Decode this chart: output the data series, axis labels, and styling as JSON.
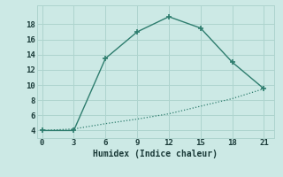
{
  "line1_x": [
    0,
    3,
    6,
    9,
    12,
    15,
    18,
    21
  ],
  "line1_y": [
    4,
    4,
    13.5,
    17,
    19,
    17.5,
    13,
    9.5
  ],
  "line2_x": [
    0,
    3,
    6,
    9,
    12,
    15,
    18,
    21
  ],
  "line2_y": [
    4,
    4.2,
    4.9,
    5.5,
    6.2,
    7.2,
    8.2,
    9.5
  ],
  "line_color": "#2e7d6e",
  "bg_color": "#cce9e5",
  "xlabel": "Humidex (Indice chaleur)",
  "xlim": [
    -0.5,
    22
  ],
  "ylim": [
    3.0,
    20.5
  ],
  "xticks": [
    0,
    3,
    6,
    9,
    12,
    15,
    18,
    21
  ],
  "yticks": [
    4,
    6,
    8,
    10,
    12,
    14,
    16,
    18
  ],
  "grid_color": "#aed4ce"
}
